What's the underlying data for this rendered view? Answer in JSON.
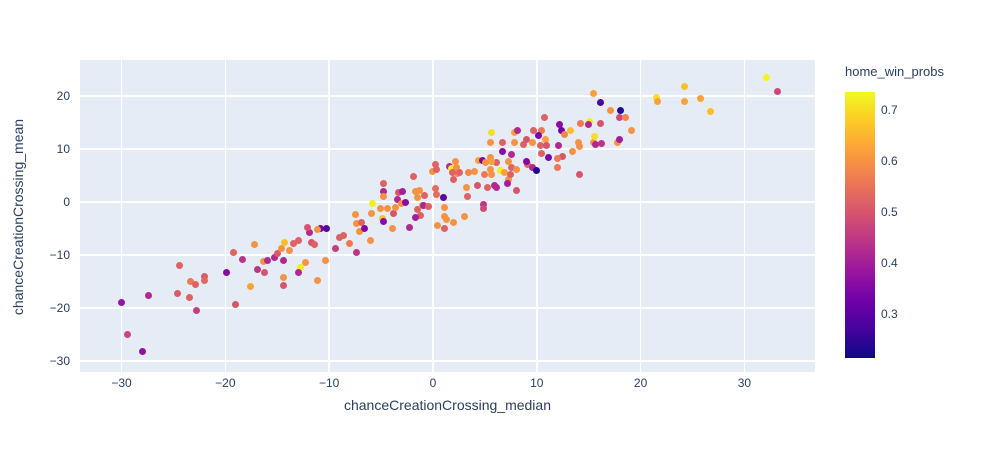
{
  "colors": {
    "paper_bg": "#ffffff",
    "plot_bg": "#e5ecf6",
    "grid": "#ffffff",
    "text": "#2a3f5f"
  },
  "chart_data": {
    "type": "scatter",
    "title": "",
    "xlabel": "chanceCreationCrossing_median",
    "ylabel": "chanceCreationCrossing_mean",
    "color_label": "home_win_probs",
    "xlim": [
      -34.0,
      36.8
    ],
    "ylim": [
      -32.1,
      26.8
    ],
    "clim": [
      0.213,
      0.735
    ],
    "grid": true,
    "legend_position": "right-colorbar",
    "marker_size_px": 7,
    "xticks": [
      {
        "v": -30,
        "label": "−30"
      },
      {
        "v": -20,
        "label": "−20"
      },
      {
        "v": -10,
        "label": "−10"
      },
      {
        "v": 0,
        "label": "0"
      },
      {
        "v": 10,
        "label": "10"
      },
      {
        "v": 20,
        "label": "20"
      },
      {
        "v": 30,
        "label": "30"
      }
    ],
    "yticks": [
      {
        "v": 20,
        "label": "20"
      },
      {
        "v": 10,
        "label": "10"
      },
      {
        "v": 0,
        "label": "0"
      },
      {
        "v": -10,
        "label": "−10"
      },
      {
        "v": -20,
        "label": "−20"
      },
      {
        "v": -30,
        "label": "−30"
      }
    ],
    "colorbar_ticks": [
      {
        "v": 0.7,
        "label": "0.7"
      },
      {
        "v": 0.6,
        "label": "0.6"
      },
      {
        "v": 0.5,
        "label": "0.5"
      },
      {
        "v": 0.4,
        "label": "0.4"
      },
      {
        "v": 0.3,
        "label": "0.3"
      }
    ],
    "colorscale_plasma": [
      [
        0.0,
        "#0d0887"
      ],
      [
        0.111,
        "#46039f"
      ],
      [
        0.222,
        "#7201a8"
      ],
      [
        0.333,
        "#9c179e"
      ],
      [
        0.444,
        "#bd3786"
      ],
      [
        0.556,
        "#d8576b"
      ],
      [
        0.667,
        "#ed7953"
      ],
      [
        0.778,
        "#fb9f3a"
      ],
      [
        0.889,
        "#fdca26"
      ],
      [
        1.0,
        "#f0f921"
      ]
    ],
    "points": [
      [
        -30.0,
        -18.9,
        0.38
      ],
      [
        -29.4,
        -25.0,
        0.47
      ],
      [
        -28.0,
        -28.2,
        0.37
      ],
      [
        -27.4,
        -17.6,
        0.42
      ],
      [
        -24.6,
        -17.3,
        0.51
      ],
      [
        -24.4,
        -12.0,
        0.52
      ],
      [
        -23.5,
        -18.1,
        0.52
      ],
      [
        -23.4,
        -15.1,
        0.56
      ],
      [
        -22.9,
        -15.6,
        0.52
      ],
      [
        -22.0,
        -14.1,
        0.51
      ],
      [
        -22.0,
        -14.9,
        0.53
      ],
      [
        -22.8,
        -20.4,
        0.46
      ],
      [
        -19.9,
        -13.4,
        0.36
      ],
      [
        -19.2,
        -9.6,
        0.52
      ],
      [
        -18.3,
        -10.9,
        0.44
      ],
      [
        -16.9,
        -12.8,
        0.44
      ],
      [
        -17.6,
        -16.0,
        0.62
      ],
      [
        -19.0,
        -19.3,
        0.5
      ],
      [
        -17.2,
        -8.0,
        0.6
      ],
      [
        -16.3,
        -11.3,
        0.6
      ],
      [
        -16.2,
        -13.4,
        0.5
      ],
      [
        -15.9,
        -11.1,
        0.42
      ],
      [
        -15.3,
        -10.5,
        0.42
      ],
      [
        -15.0,
        -9.7,
        0.51
      ],
      [
        -14.6,
        -8.8,
        0.6
      ],
      [
        -14.3,
        -7.6,
        0.66
      ],
      [
        -14.4,
        -11.1,
        0.42
      ],
      [
        -13.8,
        -9.2,
        0.6
      ],
      [
        -13.4,
        -7.8,
        0.52
      ],
      [
        -13.0,
        -7.3,
        0.52
      ],
      [
        -12.8,
        -12.4,
        0.72
      ],
      [
        -12.3,
        -11.5,
        0.6
      ],
      [
        -11.9,
        -5.7,
        0.42
      ],
      [
        -11.7,
        -7.6,
        0.5
      ],
      [
        -11.4,
        -8.0,
        0.52
      ],
      [
        -11.1,
        -14.9,
        0.6
      ],
      [
        -10.8,
        -5.0,
        0.33
      ],
      [
        -10.3,
        -5.1,
        0.29
      ],
      [
        -10.4,
        -11.1,
        0.6
      ],
      [
        -13.0,
        -13.4,
        0.42
      ],
      [
        -14.4,
        -14.3,
        0.6
      ],
      [
        -14.4,
        -15.8,
        0.5
      ],
      [
        -12.1,
        -4.8,
        0.5
      ],
      [
        -11.1,
        -5.2,
        0.6
      ],
      [
        -9.4,
        -8.7,
        0.46
      ],
      [
        -9.0,
        -6.7,
        0.52
      ],
      [
        -8.6,
        -6.3,
        0.52
      ],
      [
        -8.0,
        -7.8,
        0.56
      ],
      [
        -7.4,
        -9.5,
        0.44
      ],
      [
        -7.5,
        -2.3,
        0.6
      ],
      [
        -7.4,
        -4.0,
        0.6
      ],
      [
        -7.1,
        -5.5,
        0.6
      ],
      [
        -6.9,
        -3.8,
        0.52
      ],
      [
        -6.6,
        -5.0,
        0.35
      ],
      [
        -6.0,
        -7.3,
        0.6
      ],
      [
        -5.9,
        -2.1,
        0.6
      ],
      [
        -5.8,
        -0.2,
        0.72
      ],
      [
        -4.9,
        -3.2,
        0.66
      ],
      [
        -4.8,
        -3.6,
        0.36
      ],
      [
        -4.8,
        1.9,
        0.42
      ],
      [
        -4.8,
        1.0,
        0.6
      ],
      [
        -4.8,
        3.4,
        0.52
      ],
      [
        -5.1,
        -1.3,
        0.6
      ],
      [
        -4.4,
        -1.3,
        0.6
      ],
      [
        -3.9,
        -5.0,
        0.6
      ],
      [
        -3.8,
        -2.1,
        0.5
      ],
      [
        -3.6,
        -1.1,
        0.6
      ],
      [
        -3.4,
        0.4,
        0.42
      ],
      [
        -3.3,
        1.7,
        0.5
      ],
      [
        -2.9,
        1.9,
        0.4
      ],
      [
        -3.0,
        -0.3,
        0.6
      ],
      [
        -2.6,
        -0.1,
        0.36
      ],
      [
        -2.3,
        -4.8,
        0.42
      ],
      [
        -1.9,
        4.8,
        0.52
      ],
      [
        -1.7,
        1.9,
        0.6
      ],
      [
        -1.5,
        0.8,
        0.6
      ],
      [
        -1.3,
        2.1,
        0.6
      ],
      [
        -1.5,
        -1.5,
        0.52
      ],
      [
        -1.0,
        -0.6,
        0.6
      ],
      [
        -0.8,
        1.3,
        0.52
      ],
      [
        -1.2,
        -2.5,
        0.52
      ],
      [
        -1.7,
        -3.0,
        0.4
      ],
      [
        -0.9,
        -0.6,
        0.42
      ],
      [
        -0.4,
        -0.8,
        0.52
      ],
      [
        0.0,
        5.7,
        0.6
      ],
      [
        0.2,
        7.1,
        0.52
      ],
      [
        0.3,
        6.1,
        0.52
      ],
      [
        0.2,
        2.5,
        0.54
      ],
      [
        0.3,
        1.5,
        0.54
      ],
      [
        1.0,
        0.8,
        0.3
      ],
      [
        1.1,
        -1.1,
        0.6
      ],
      [
        1.1,
        -2.8,
        0.6
      ],
      [
        1.6,
        6.7,
        0.42
      ],
      [
        1.8,
        6.3,
        0.72
      ],
      [
        2.3,
        6.5,
        0.6
      ],
      [
        2.4,
        5.3,
        0.6
      ],
      [
        1.9,
        5.5,
        0.52
      ],
      [
        2.2,
        7.6,
        0.6
      ],
      [
        3.2,
        2.7,
        0.6
      ],
      [
        3.3,
        1.0,
        0.52
      ],
      [
        2.0,
        -3.8,
        0.6
      ],
      [
        0.4,
        -4.4,
        0.6
      ],
      [
        1.1,
        -5.0,
        0.52
      ],
      [
        1.3,
        -3.4,
        0.6
      ],
      [
        3.0,
        -2.8,
        0.6
      ],
      [
        4.9,
        -0.4,
        0.44
      ],
      [
        4.9,
        -1.3,
        0.48
      ],
      [
        2.6,
        5.5,
        0.52
      ],
      [
        3.4,
        5.5,
        0.58
      ],
      [
        2.0,
        4.2,
        0.52
      ],
      [
        4.0,
        5.7,
        0.6
      ],
      [
        4.3,
        3.2,
        0.5
      ],
      [
        4.4,
        7.8,
        0.62
      ],
      [
        4.8,
        7.8,
        0.34
      ],
      [
        5.5,
        8.4,
        0.6
      ],
      [
        5.0,
        5.2,
        0.56
      ],
      [
        5.6,
        5.2,
        0.6
      ],
      [
        5.3,
        2.7,
        0.52
      ],
      [
        5.9,
        3.2,
        0.42
      ],
      [
        6.1,
        2.7,
        0.42
      ],
      [
        6.1,
        7.4,
        0.52
      ],
      [
        6.5,
        5.9,
        0.72
      ],
      [
        6.9,
        5.5,
        0.62
      ],
      [
        7.6,
        6.5,
        0.52
      ],
      [
        7.3,
        4.2,
        0.6
      ],
      [
        7.2,
        3.4,
        0.4
      ],
      [
        5.5,
        6.1,
        0.6
      ],
      [
        5.6,
        7.6,
        0.62
      ],
      [
        5.1,
        7.4,
        0.6
      ],
      [
        7.5,
        5.2,
        0.52
      ],
      [
        8.0,
        6.1,
        0.6
      ],
      [
        8.0,
        2.1,
        0.5
      ],
      [
        6.7,
        9.5,
        0.36
      ],
      [
        7.3,
        7.6,
        0.6
      ],
      [
        7.6,
        9.0,
        0.42
      ],
      [
        9.1,
        7.1,
        0.52
      ],
      [
        9.6,
        6.5,
        0.42
      ],
      [
        10.0,
        5.9,
        0.24
      ],
      [
        12.0,
        6.5,
        0.56
      ],
      [
        14.1,
        5.2,
        0.5
      ],
      [
        12.5,
        8.6,
        0.5
      ],
      [
        12.0,
        8.2,
        0.56
      ],
      [
        11.1,
        8.4,
        0.34
      ],
      [
        10.5,
        9.2,
        0.52
      ],
      [
        13.4,
        9.5,
        0.6
      ],
      [
        14.1,
        10.5,
        0.6
      ],
      [
        6.7,
        11.3,
        0.52
      ],
      [
        7.9,
        11.3,
        0.6
      ],
      [
        8.7,
        10.9,
        0.52
      ],
      [
        9.0,
        11.8,
        0.5
      ],
      [
        9.0,
        7.6,
        0.35
      ],
      [
        9.6,
        11.3,
        0.6
      ],
      [
        7.9,
        13.1,
        0.62
      ],
      [
        8.1,
        13.4,
        0.42
      ],
      [
        9.7,
        13.4,
        0.52
      ],
      [
        10.5,
        13.4,
        0.56
      ],
      [
        10.2,
        12.6,
        0.34
      ],
      [
        10.7,
        16.0,
        0.52
      ],
      [
        10.8,
        11.8,
        0.62
      ],
      [
        10.4,
        10.7,
        0.52
      ],
      [
        10.9,
        10.7,
        0.5
      ],
      [
        12.1,
        10.7,
        0.42
      ],
      [
        12.4,
        13.4,
        0.32
      ],
      [
        12.7,
        12.8,
        0.58
      ],
      [
        13.2,
        13.4,
        0.66
      ],
      [
        12.2,
        14.7,
        0.36
      ],
      [
        14.2,
        14.9,
        0.56
      ],
      [
        14.0,
        11.3,
        0.6
      ],
      [
        15.5,
        11.3,
        0.6
      ],
      [
        15.1,
        15.1,
        0.72
      ],
      [
        15.0,
        14.7,
        0.42
      ],
      [
        15.6,
        12.4,
        0.7
      ],
      [
        15.7,
        10.9,
        0.42
      ],
      [
        16.2,
        11.1,
        0.44
      ],
      [
        17.8,
        11.3,
        0.6
      ],
      [
        18.0,
        11.8,
        0.4
      ],
      [
        19.1,
        13.4,
        0.6
      ],
      [
        5.6,
        13.2,
        0.7
      ],
      [
        5.5,
        11.3,
        0.6
      ],
      [
        15.5,
        20.4,
        0.62
      ],
      [
        16.1,
        18.7,
        0.28
      ],
      [
        16.1,
        14.9,
        0.5
      ],
      [
        17.1,
        17.2,
        0.6
      ],
      [
        18.1,
        17.2,
        0.24
      ],
      [
        18.0,
        16.0,
        0.48
      ],
      [
        18.5,
        16.0,
        0.58
      ],
      [
        21.5,
        19.8,
        0.7
      ],
      [
        21.6,
        18.9,
        0.62
      ],
      [
        24.2,
        21.8,
        0.66
      ],
      [
        24.2,
        18.9,
        0.62
      ],
      [
        25.8,
        19.5,
        0.62
      ],
      [
        26.7,
        17.0,
        0.66
      ],
      [
        32.1,
        23.5,
        0.73
      ],
      [
        33.2,
        20.8,
        0.48
      ]
    ]
  }
}
